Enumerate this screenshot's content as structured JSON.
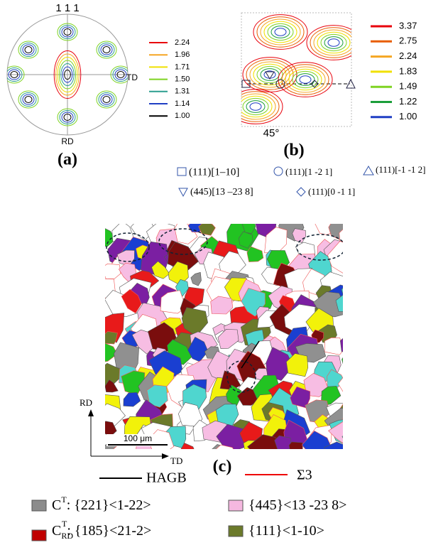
{
  "panel_a": {
    "pole": "1 1 1",
    "td": "TD",
    "rd": "RD",
    "label": "(a)",
    "legend": [
      {
        "text": "2.24",
        "color": "#e8000b"
      },
      {
        "text": "1.96",
        "color": "#f5a623"
      },
      {
        "text": "1.71",
        "color": "#f0e000"
      },
      {
        "text": "1.50",
        "color": "#7ed321"
      },
      {
        "text": "1.31",
        "color": "#2a9d8f"
      },
      {
        "text": "1.14",
        "color": "#1f3fc4"
      },
      {
        "text": "1.00",
        "color": "#000000"
      }
    ]
  },
  "panel_b": {
    "angle": "45°",
    "label": "(b)",
    "legend": [
      {
        "text": "3.37",
        "color": "#e8000b"
      },
      {
        "text": "2.75",
        "color": "#e85d00"
      },
      {
        "text": "2.24",
        "color": "#f5a623"
      },
      {
        "text": "1.83",
        "color": "#f0e000"
      },
      {
        "text": "1.49",
        "color": "#7ed321"
      },
      {
        "text": "1.22",
        "color": "#1b9e3a"
      },
      {
        "text": "1.00",
        "color": "#1f3fc4"
      }
    ]
  },
  "orientation_key": [
    "(111)[1–10]",
    "(111)[1 -2 1]",
    "(111)[-1 -1 2]",
    "(445)[13 –23 8]",
    "(111)[0 -1 1]"
  ],
  "panel_c": {
    "rd": "RD",
    "td": "TD",
    "scale_bar": "100 μm",
    "label": "(c)",
    "hagb": "HAGB",
    "sigma3": "Σ3",
    "texture_key": [
      {
        "symbol": "C",
        "sup": "T",
        "sub": "",
        "text": ": {221}<1-22>",
        "color": "#8c8c8c"
      },
      {
        "symbol": "",
        "sup": "",
        "sub": "",
        "text": "{445}<13 -23 8>",
        "color": "#f5b8e0"
      },
      {
        "symbol": "C",
        "sup": "T",
        "sub": "RD",
        "text": ": {185}<21-2>",
        "color": "#c00000"
      },
      {
        "symbol": "",
        "sup": "",
        "sub": "",
        "text": "{111}<1-10>",
        "color": "#6b7a2a"
      }
    ]
  }
}
